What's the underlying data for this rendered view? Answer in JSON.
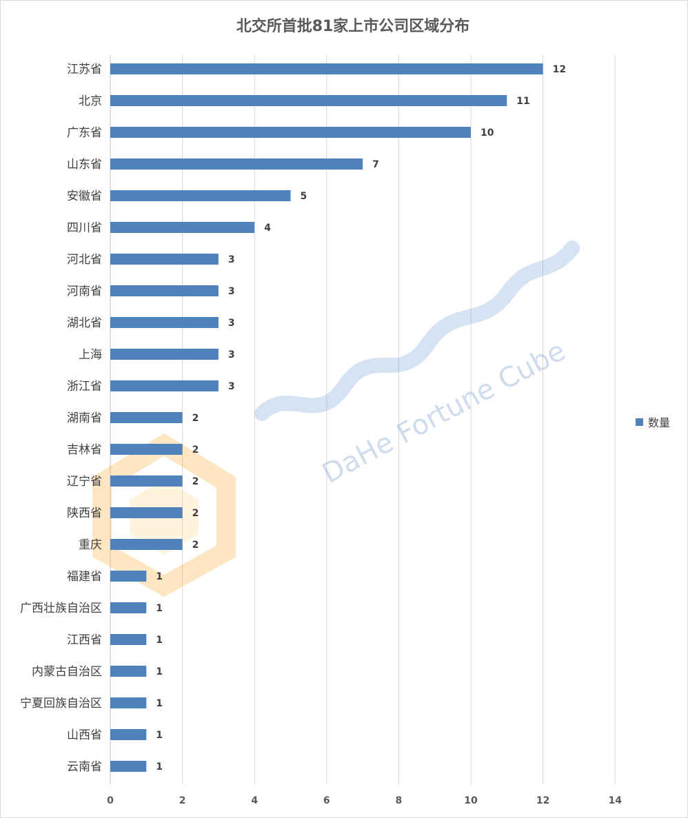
{
  "chart_data": {
    "type": "bar",
    "orientation": "horizontal",
    "title": "北交所首批81家上市公司区域分布",
    "categories": [
      "江苏省",
      "北京",
      "广东省",
      "山东省",
      "安徽省",
      "四川省",
      "河北省",
      "河南省",
      "湖北省",
      "上海",
      "浙江省",
      "湖南省",
      "吉林省",
      "辽宁省",
      "陕西省",
      "重庆",
      "福建省",
      "广西壮族自治区",
      "江西省",
      "内蒙古自治区",
      "宁夏回族自治区",
      "山西省",
      "云南省"
    ],
    "series": [
      {
        "name": "数量",
        "values": [
          12,
          11,
          10,
          7,
          5,
          4,
          3,
          3,
          3,
          3,
          3,
          2,
          2,
          2,
          2,
          2,
          1,
          1,
          1,
          1,
          1,
          1,
          1
        ]
      }
    ],
    "xlim": [
      0,
      14
    ],
    "xticks": [
      0,
      2,
      4,
      6,
      8,
      10,
      12,
      14
    ],
    "xlabel": "",
    "ylabel": "",
    "grid": true,
    "legend_position": "right",
    "bar_color": "#4f81bd"
  },
  "watermark": {
    "brand_text": "DaHe Fortune Cube"
  }
}
